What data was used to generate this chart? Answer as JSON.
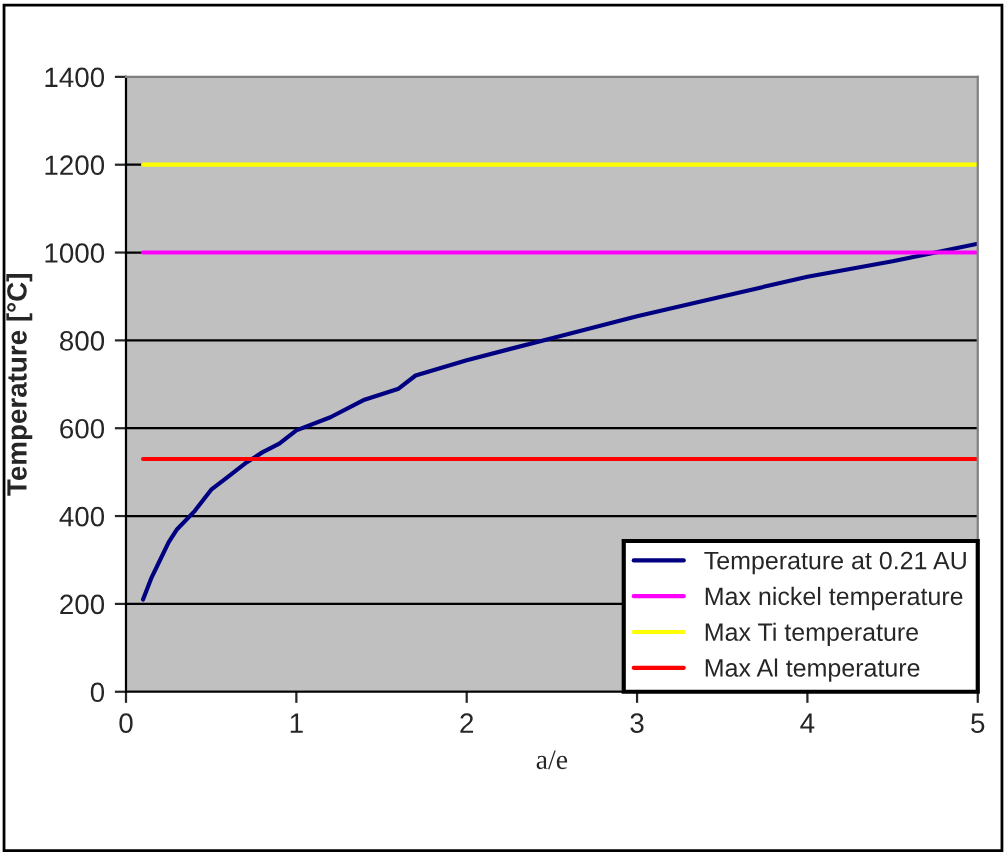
{
  "chart_data": {
    "type": "line",
    "xlabel": "a/e",
    "ylabel": "Temperature [°C]",
    "xlim": [
      0,
      5
    ],
    "xticks": [
      0,
      1,
      2,
      3,
      4,
      5
    ],
    "ylim": [
      0,
      1400
    ],
    "yticks": [
      0,
      200,
      400,
      600,
      800,
      1000,
      1200,
      1400
    ],
    "grid": "y",
    "legend": "bottom right",
    "series": [
      {
        "name": "Temperature at 0.21 AU",
        "color": "#000080",
        "x": [
          0.1,
          0.15,
          0.2,
          0.25,
          0.3,
          0.4,
          0.5,
          0.6,
          0.7,
          0.8,
          0.9,
          1.0,
          1.2,
          1.4,
          1.6,
          1.7,
          2.0,
          2.5,
          3.0,
          3.5,
          4.0,
          4.5,
          5.0
        ],
        "values": [
          210,
          260,
          300,
          340,
          370,
          410,
          460,
          490,
          520,
          545,
          565,
          595,
          625,
          665,
          690,
          720,
          755,
          805,
          855,
          900,
          945,
          980,
          1020
        ]
      },
      {
        "name": "Max nickel temperature",
        "color": "#ff00ff",
        "x": [
          0.1,
          5
        ],
        "values": [
          1000,
          1000
        ]
      },
      {
        "name": "Max Ti temperature",
        "color": "#ffff00",
        "x": [
          0.1,
          5
        ],
        "values": [
          1200,
          1200
        ]
      },
      {
        "name": "Max Al temperature",
        "color": "#ff0000",
        "x": [
          0.1,
          5
        ],
        "values": [
          530,
          530
        ]
      }
    ]
  }
}
